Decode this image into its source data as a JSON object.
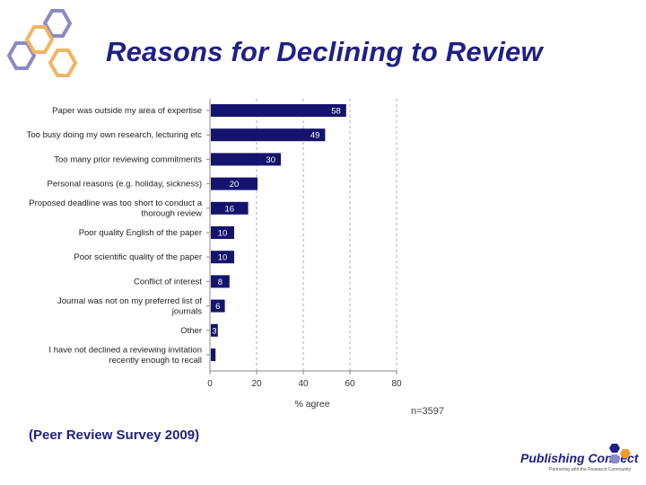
{
  "slide": {
    "title": "Reasons for Declining to Review",
    "source": "(Peer Review Survey 2009)",
    "sample_size": "n=3597",
    "logo": {
      "name": "Publishing Connect",
      "tagline": "Partnering with the Research Community"
    }
  },
  "colors": {
    "title": "#1f1f87",
    "bar": "#14146e",
    "hex_purple": "#8a8ac4",
    "hex_orange": "#f1b562",
    "logo_orange": "#ee9a2a"
  },
  "chart_data": {
    "type": "bar",
    "orientation": "horizontal",
    "categories": [
      [
        "Paper was outside my area of expertise"
      ],
      [
        "Too busy doing my own research, lecturing etc"
      ],
      [
        "Too many prior reviewing commitments"
      ],
      [
        "Personal reasons (e.g. holiday, sickness)"
      ],
      [
        "Proposed deadline was too short to conduct a",
        "thorough review"
      ],
      [
        "Poor quality English of the paper"
      ],
      [
        "Poor scientific quality of the paper"
      ],
      [
        "Conflict of interest"
      ],
      [
        "Journal was not on my preferred list of",
        "journals"
      ],
      [
        "Other"
      ],
      [
        "I have not declined a reviewing invitation",
        "recently enough to recall"
      ]
    ],
    "values": [
      58,
      49,
      30,
      20,
      16,
      10,
      10,
      8,
      6,
      3,
      2
    ],
    "value_labels": [
      "58",
      "49",
      "30",
      "20",
      "16",
      "10",
      "10",
      "8",
      "6",
      "3",
      ""
    ],
    "xlabel": "% agree",
    "xlim": [
      0,
      80
    ],
    "xticks": [
      "0",
      "20",
      "40",
      "60",
      "80"
    ],
    "grid": "vertical dashed"
  }
}
